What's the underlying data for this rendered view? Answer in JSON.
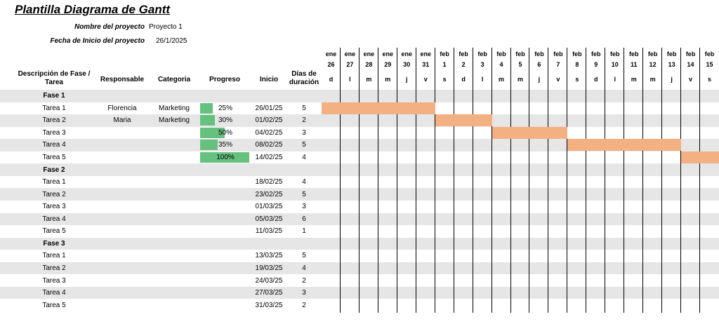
{
  "title": "Plantilla Diagrama de Gantt",
  "project": {
    "name_label": "Nombre del proyecto",
    "name_value": "Proyecto 1",
    "start_label": "Fecha de Inicio del proyecto",
    "start_value": "26/1/2025"
  },
  "headers": {
    "description": "Descripción de Fase / Tarea",
    "responsible": "Responsable",
    "category": "Categoria",
    "progress": "Progreso",
    "start": "Inicio",
    "duration": "Días de duración"
  },
  "days": [
    {
      "month": "ene",
      "day": "26",
      "dow": "d"
    },
    {
      "month": "ene",
      "day": "27",
      "dow": "l"
    },
    {
      "month": "ene",
      "day": "28",
      "dow": "m"
    },
    {
      "month": "ene",
      "day": "29",
      "dow": "m"
    },
    {
      "month": "ene",
      "day": "30",
      "dow": "j"
    },
    {
      "month": "ene",
      "day": "31",
      "dow": "v"
    },
    {
      "month": "feb",
      "day": "1",
      "dow": "s"
    },
    {
      "month": "feb",
      "day": "2",
      "dow": "d"
    },
    {
      "month": "feb",
      "day": "3",
      "dow": "l"
    },
    {
      "month": "feb",
      "day": "4",
      "dow": "m"
    },
    {
      "month": "feb",
      "day": "5",
      "dow": "m"
    },
    {
      "month": "feb",
      "day": "6",
      "dow": "j"
    },
    {
      "month": "feb",
      "day": "7",
      "dow": "v"
    },
    {
      "month": "feb",
      "day": "8",
      "dow": "s"
    },
    {
      "month": "feb",
      "day": "9",
      "dow": "d"
    },
    {
      "month": "feb",
      "day": "10",
      "dow": "l"
    },
    {
      "month": "feb",
      "day": "11",
      "dow": "m"
    },
    {
      "month": "feb",
      "day": "12",
      "dow": "m"
    },
    {
      "month": "feb",
      "day": "13",
      "dow": "j"
    },
    {
      "month": "feb",
      "day": "14",
      "dow": "v"
    },
    {
      "month": "feb",
      "day": "15",
      "dow": "s"
    }
  ],
  "rows": [
    {
      "type": "phase",
      "name": "Fase 1"
    },
    {
      "type": "task",
      "name": "Tarea 1",
      "responsible": "Florencia",
      "category": "Marketing",
      "progress": "25%",
      "progress_value": 0.25,
      "start": "26/01/25",
      "duration": "5",
      "bar_start": 0,
      "bar_days": 6
    },
    {
      "type": "task",
      "name": "Tarea 2",
      "responsible": "Maria",
      "category": "Marketing",
      "progress": "30%",
      "progress_value": 0.3,
      "start": "01/02/25",
      "duration": "2",
      "bar_start": 6,
      "bar_days": 3
    },
    {
      "type": "task",
      "name": "Tarea 3",
      "responsible": "",
      "category": "",
      "progress": "50%",
      "progress_value": 0.5,
      "start": "04/02/25",
      "duration": "3",
      "bar_start": 9,
      "bar_days": 4
    },
    {
      "type": "task",
      "name": "Tarea 4",
      "responsible": "",
      "category": "",
      "progress": "35%",
      "progress_value": 0.35,
      "start": "08/02/25",
      "duration": "5",
      "bar_start": 13,
      "bar_days": 6
    },
    {
      "type": "task",
      "name": "Tarea 5",
      "responsible": "",
      "category": "",
      "progress": "100%",
      "progress_value": 1.0,
      "start": "14/02/25",
      "duration": "4",
      "bar_start": 19,
      "bar_days": 2
    },
    {
      "type": "phase",
      "name": "Fase 2"
    },
    {
      "type": "task",
      "name": "Tarea 1",
      "responsible": "",
      "category": "",
      "progress": "",
      "start": "18/02/25",
      "duration": "4"
    },
    {
      "type": "task",
      "name": "Tarea 2",
      "responsible": "",
      "category": "",
      "progress": "",
      "start": "23/02/25",
      "duration": "5"
    },
    {
      "type": "task",
      "name": "Tarea 3",
      "responsible": "",
      "category": "",
      "progress": "",
      "start": "01/03/25",
      "duration": "3"
    },
    {
      "type": "task",
      "name": "Tarea 4",
      "responsible": "",
      "category": "",
      "progress": "",
      "start": "05/03/25",
      "duration": "6"
    },
    {
      "type": "task",
      "name": "Tarea 5",
      "responsible": "",
      "category": "",
      "progress": "",
      "start": "11/03/25",
      "duration": "1"
    },
    {
      "type": "phase",
      "name": "Fase 3"
    },
    {
      "type": "task",
      "name": "Tarea 1",
      "responsible": "",
      "category": "",
      "progress": "",
      "start": "13/03/25",
      "duration": "5"
    },
    {
      "type": "task",
      "name": "Tarea 2",
      "responsible": "",
      "category": "",
      "progress": "",
      "start": "19/03/25",
      "duration": "4"
    },
    {
      "type": "task",
      "name": "Tarea 3",
      "responsible": "",
      "category": "",
      "progress": "",
      "start": "24/03/25",
      "duration": "2"
    },
    {
      "type": "task",
      "name": "Tarea 4",
      "responsible": "",
      "category": "",
      "progress": "",
      "start": "27/03/25",
      "duration": "3"
    },
    {
      "type": "task",
      "name": "Tarea 5",
      "responsible": "",
      "category": "",
      "progress": "",
      "start": "31/03/25",
      "duration": "2"
    }
  ],
  "colors": {
    "gantt_bar": "#f3b083",
    "progress_bar": "#66c17f",
    "row_shade": "#e6e6e6"
  }
}
